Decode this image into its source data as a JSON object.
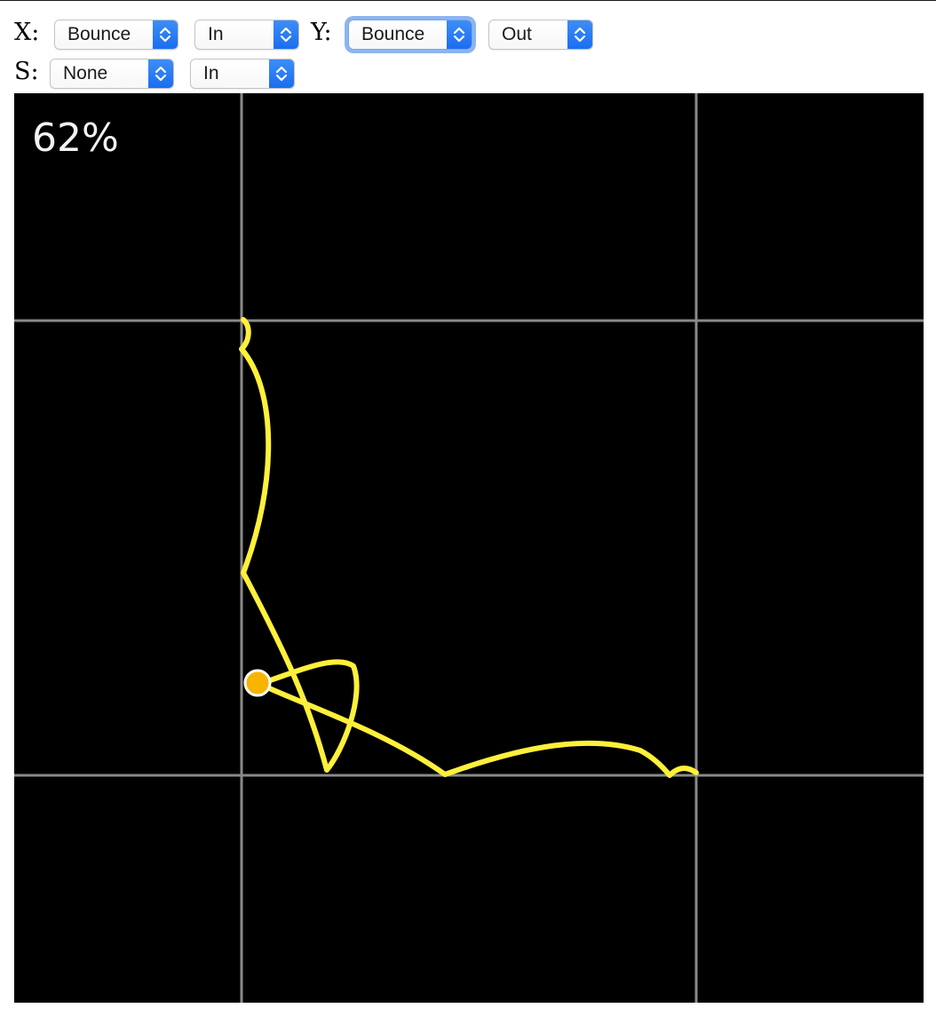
{
  "controls": {
    "x": {
      "label": "X:",
      "easing": "Bounce",
      "mode": "In"
    },
    "y": {
      "label": "Y:",
      "easing": "Bounce",
      "mode": "Out"
    },
    "s": {
      "label": "S:",
      "easing": "None",
      "mode": "In"
    }
  },
  "canvas": {
    "progress_label": "62%",
    "progress": 0.62
  },
  "colors": {
    "background": "#000000",
    "grid": "#8a8a8a",
    "path": "#fff03a",
    "marker": "#f7b500",
    "marker_outline": "#ffffff",
    "stepper": "#1a6ef0"
  },
  "icons": {
    "stepper": "up-down-chevron-icon"
  }
}
